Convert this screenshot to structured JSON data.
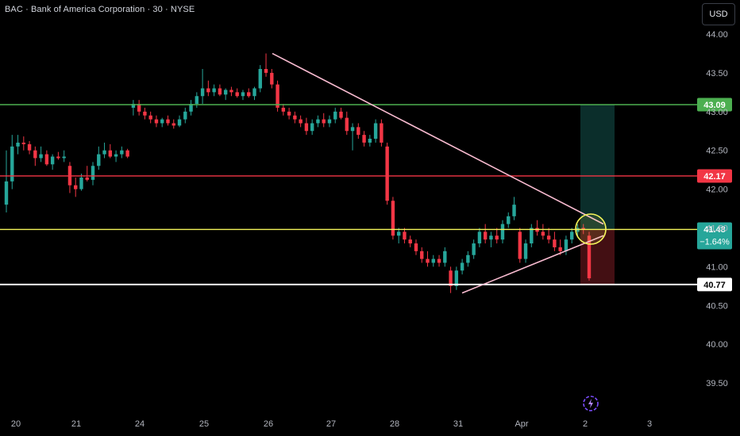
{
  "header": {
    "title": "BAC · Bank of America Corporation · 30 · NYSE",
    "currency": "USD"
  },
  "colors": {
    "up": "#26a69a",
    "down": "#f23645",
    "background": "#000000",
    "axis_text": "#b2b5be",
    "green_line": "#4caf50",
    "red_line": "#f23645",
    "yellow_line": "#f5f55a",
    "white_line": "#ffffff",
    "trend": "#f8bbd0"
  },
  "chart_data": {
    "type": "candlestick",
    "symbol": "BAC",
    "interval": "30",
    "y_ticks": [
      "44.00",
      "43.50",
      "43.00",
      "42.50",
      "42.00",
      "41.50",
      "41.00",
      "40.50",
      "40.00",
      "39.50"
    ],
    "ylim": [
      39.3,
      44.2
    ],
    "x_ticks": [
      "20",
      "21",
      "24",
      "25",
      "26",
      "27",
      "28",
      "31",
      "Apr",
      "2",
      "3"
    ],
    "horizontal_levels": [
      {
        "price": 43.09,
        "label": "43.09",
        "color": "#4caf50"
      },
      {
        "price": 42.17,
        "label": "42.17",
        "color": "#f23645"
      },
      {
        "price": 41.48,
        "label": "41.48",
        "change": "−1.64%",
        "color": "#f5f55a"
      },
      {
        "price": 40.77,
        "label": "40.77",
        "color": "#ffffff"
      }
    ],
    "trendlines": [
      {
        "from": {
          "day": "26",
          "price": 43.75
        },
        "to": {
          "day": "2",
          "price": 41.55
        }
      },
      {
        "from": {
          "day": "31",
          "price": 40.66
        },
        "to": {
          "day": "2",
          "price": 41.4
        }
      }
    ],
    "position": {
      "entry": 41.48,
      "target": 43.09,
      "stop": 40.77
    },
    "candles": [
      {
        "o": 41.8,
        "h": 42.5,
        "l": 41.7,
        "c": 42.1
      },
      {
        "o": 42.1,
        "h": 42.7,
        "l": 42.0,
        "c": 42.55
      },
      {
        "o": 42.55,
        "h": 42.7,
        "l": 42.45,
        "c": 42.6
      },
      {
        "o": 42.6,
        "h": 42.68,
        "l": 42.5,
        "c": 42.58
      },
      {
        "o": 42.58,
        "h": 42.62,
        "l": 42.45,
        "c": 42.5
      },
      {
        "o": 42.5,
        "h": 42.55,
        "l": 42.3,
        "c": 42.4
      },
      {
        "o": 42.4,
        "h": 42.55,
        "l": 42.35,
        "c": 42.45
      },
      {
        "o": 42.45,
        "h": 42.5,
        "l": 42.3,
        "c": 42.32
      },
      {
        "o": 42.32,
        "h": 42.45,
        "l": 42.25,
        "c": 42.42
      },
      {
        "o": 42.42,
        "h": 42.48,
        "l": 42.38,
        "c": 42.4
      },
      {
        "o": 42.4,
        "h": 42.5,
        "l": 42.35,
        "c": 42.42
      },
      {
        "o": 42.3,
        "h": 42.35,
        "l": 41.95,
        "c": 42.05
      },
      {
        "o": 42.05,
        "h": 42.15,
        "l": 41.9,
        "c": 42.0
      },
      {
        "o": 42.0,
        "h": 42.2,
        "l": 41.98,
        "c": 42.15
      },
      {
        "o": 42.15,
        "h": 42.3,
        "l": 42.1,
        "c": 42.12
      },
      {
        "o": 42.12,
        "h": 42.35,
        "l": 42.05,
        "c": 42.3
      },
      {
        "o": 42.3,
        "h": 42.55,
        "l": 42.25,
        "c": 42.45
      },
      {
        "o": 42.45,
        "h": 42.6,
        "l": 42.4,
        "c": 42.5
      },
      {
        "o": 42.5,
        "h": 42.58,
        "l": 42.4,
        "c": 42.42
      },
      {
        "o": 42.42,
        "h": 42.5,
        "l": 42.35,
        "c": 42.45
      },
      {
        "o": 42.45,
        "h": 42.55,
        "l": 42.4,
        "c": 42.5
      },
      {
        "o": 42.5,
        "h": 42.52,
        "l": 42.4,
        "c": 42.42
      },
      {
        "o": 43.05,
        "h": 43.15,
        "l": 42.95,
        "c": 43.1
      },
      {
        "o": 43.1,
        "h": 43.15,
        "l": 42.95,
        "c": 43.0
      },
      {
        "o": 43.0,
        "h": 43.05,
        "l": 42.9,
        "c": 42.95
      },
      {
        "o": 42.95,
        "h": 43.0,
        "l": 42.85,
        "c": 42.9
      },
      {
        "o": 42.9,
        "h": 42.95,
        "l": 42.8,
        "c": 42.85
      },
      {
        "o": 42.85,
        "h": 42.92,
        "l": 42.8,
        "c": 42.9
      },
      {
        "o": 42.9,
        "h": 42.95,
        "l": 42.82,
        "c": 42.85
      },
      {
        "o": 42.85,
        "h": 42.9,
        "l": 42.78,
        "c": 42.82
      },
      {
        "o": 42.82,
        "h": 42.95,
        "l": 42.8,
        "c": 42.9
      },
      {
        "o": 42.9,
        "h": 43.05,
        "l": 42.85,
        "c": 43.0
      },
      {
        "o": 43.0,
        "h": 43.15,
        "l": 42.95,
        "c": 43.1
      },
      {
        "o": 43.1,
        "h": 43.25,
        "l": 43.05,
        "c": 43.2
      },
      {
        "o": 43.2,
        "h": 43.55,
        "l": 43.1,
        "c": 43.3
      },
      {
        "o": 43.3,
        "h": 43.4,
        "l": 43.2,
        "c": 43.25
      },
      {
        "o": 43.25,
        "h": 43.35,
        "l": 43.2,
        "c": 43.3
      },
      {
        "o": 43.3,
        "h": 43.35,
        "l": 43.2,
        "c": 43.22
      },
      {
        "o": 43.22,
        "h": 43.3,
        "l": 43.15,
        "c": 43.28
      },
      {
        "o": 43.28,
        "h": 43.32,
        "l": 43.2,
        "c": 43.25
      },
      {
        "o": 43.25,
        "h": 43.3,
        "l": 43.18,
        "c": 43.2
      },
      {
        "o": 43.2,
        "h": 43.28,
        "l": 43.15,
        "c": 43.25
      },
      {
        "o": 43.25,
        "h": 43.3,
        "l": 43.18,
        "c": 43.2
      },
      {
        "o": 43.2,
        "h": 43.32,
        "l": 43.15,
        "c": 43.3
      },
      {
        "o": 43.3,
        "h": 43.6,
        "l": 43.25,
        "c": 43.55
      },
      {
        "o": 43.55,
        "h": 43.75,
        "l": 43.45,
        "c": 43.5
      },
      {
        "o": 43.5,
        "h": 43.55,
        "l": 43.3,
        "c": 43.35
      },
      {
        "o": 43.35,
        "h": 43.4,
        "l": 43.0,
        "c": 43.05
      },
      {
        "o": 43.05,
        "h": 43.1,
        "l": 42.95,
        "c": 43.0
      },
      {
        "o": 43.0,
        "h": 43.05,
        "l": 42.9,
        "c": 42.95
      },
      {
        "o": 42.95,
        "h": 43.0,
        "l": 42.85,
        "c": 42.9
      },
      {
        "o": 42.9,
        "h": 42.95,
        "l": 42.8,
        "c": 42.85
      },
      {
        "o": 42.85,
        "h": 42.92,
        "l": 42.7,
        "c": 42.75
      },
      {
        "o": 42.75,
        "h": 42.9,
        "l": 42.7,
        "c": 42.85
      },
      {
        "o": 42.85,
        "h": 42.95,
        "l": 42.8,
        "c": 42.9
      },
      {
        "o": 42.9,
        "h": 42.98,
        "l": 42.8,
        "c": 42.85
      },
      {
        "o": 42.85,
        "h": 42.95,
        "l": 42.8,
        "c": 42.9
      },
      {
        "o": 42.9,
        "h": 43.05,
        "l": 42.85,
        "c": 43.0
      },
      {
        "o": 43.0,
        "h": 43.05,
        "l": 42.9,
        "c": 42.92
      },
      {
        "o": 42.92,
        "h": 43.0,
        "l": 42.7,
        "c": 42.75
      },
      {
        "o": 42.75,
        "h": 42.85,
        "l": 42.5,
        "c": 42.8
      },
      {
        "o": 42.8,
        "h": 42.85,
        "l": 42.65,
        "c": 42.7
      },
      {
        "o": 42.7,
        "h": 42.75,
        "l": 42.55,
        "c": 42.6
      },
      {
        "o": 42.6,
        "h": 42.7,
        "l": 42.55,
        "c": 42.65
      },
      {
        "o": 42.65,
        "h": 42.9,
        "l": 42.6,
        "c": 42.85
      },
      {
        "o": 42.85,
        "h": 42.9,
        "l": 42.55,
        "c": 42.6
      },
      {
        "o": 42.55,
        "h": 42.6,
        "l": 41.8,
        "c": 41.85
      },
      {
        "o": 41.85,
        "h": 41.9,
        "l": 41.35,
        "c": 41.4
      },
      {
        "o": 41.4,
        "h": 41.5,
        "l": 41.3,
        "c": 41.45
      },
      {
        "o": 41.45,
        "h": 41.5,
        "l": 41.3,
        "c": 41.35
      },
      {
        "o": 41.35,
        "h": 41.4,
        "l": 41.25,
        "c": 41.3
      },
      {
        "o": 41.3,
        "h": 41.35,
        "l": 41.15,
        "c": 41.2
      },
      {
        "o": 41.2,
        "h": 41.25,
        "l": 41.05,
        "c": 41.1
      },
      {
        "o": 41.1,
        "h": 41.2,
        "l": 41.0,
        "c": 41.05
      },
      {
        "o": 41.05,
        "h": 41.15,
        "l": 41.0,
        "c": 41.1
      },
      {
        "o": 41.1,
        "h": 41.15,
        "l": 41.0,
        "c": 41.05
      },
      {
        "o": 41.05,
        "h": 41.25,
        "l": 41.0,
        "c": 41.2
      },
      {
        "o": 40.95,
        "h": 41.0,
        "l": 40.66,
        "c": 40.75
      },
      {
        "o": 40.75,
        "h": 41.0,
        "l": 40.7,
        "c": 40.95
      },
      {
        "o": 40.95,
        "h": 41.1,
        "l": 40.9,
        "c": 41.05
      },
      {
        "o": 41.05,
        "h": 41.2,
        "l": 41.0,
        "c": 41.15
      },
      {
        "o": 41.15,
        "h": 41.35,
        "l": 41.1,
        "c": 41.3
      },
      {
        "o": 41.3,
        "h": 41.5,
        "l": 41.25,
        "c": 41.45
      },
      {
        "o": 41.45,
        "h": 41.55,
        "l": 41.3,
        "c": 41.35
      },
      {
        "o": 41.35,
        "h": 41.45,
        "l": 41.25,
        "c": 41.4
      },
      {
        "o": 41.4,
        "h": 41.5,
        "l": 41.3,
        "c": 41.35
      },
      {
        "o": 41.35,
        "h": 41.6,
        "l": 41.3,
        "c": 41.55
      },
      {
        "o": 41.55,
        "h": 41.7,
        "l": 41.5,
        "c": 41.65
      },
      {
        "o": 41.65,
        "h": 41.9,
        "l": 41.6,
        "c": 41.8
      },
      {
        "o": 41.45,
        "h": 41.5,
        "l": 41.05,
        "c": 41.1
      },
      {
        "o": 41.1,
        "h": 41.35,
        "l": 41.05,
        "c": 41.3
      },
      {
        "o": 41.3,
        "h": 41.55,
        "l": 41.25,
        "c": 41.5
      },
      {
        "o": 41.5,
        "h": 41.6,
        "l": 41.4,
        "c": 41.45
      },
      {
        "o": 41.45,
        "h": 41.55,
        "l": 41.35,
        "c": 41.4
      },
      {
        "o": 41.4,
        "h": 41.5,
        "l": 41.3,
        "c": 41.35
      },
      {
        "o": 41.35,
        "h": 41.45,
        "l": 41.2,
        "c": 41.25
      },
      {
        "o": 41.25,
        "h": 41.35,
        "l": 41.15,
        "c": 41.2
      },
      {
        "o": 41.2,
        "h": 41.4,
        "l": 41.15,
        "c": 41.35
      },
      {
        "o": 41.35,
        "h": 41.5,
        "l": 41.3,
        "c": 41.45
      },
      {
        "o": 41.45,
        "h": 41.55,
        "l": 41.4,
        "c": 41.5
      },
      {
        "o": 41.5,
        "h": 41.55,
        "l": 41.42,
        "c": 41.48
      },
      {
        "o": 41.4,
        "h": 41.45,
        "l": 40.82,
        "c": 40.85
      }
    ]
  }
}
